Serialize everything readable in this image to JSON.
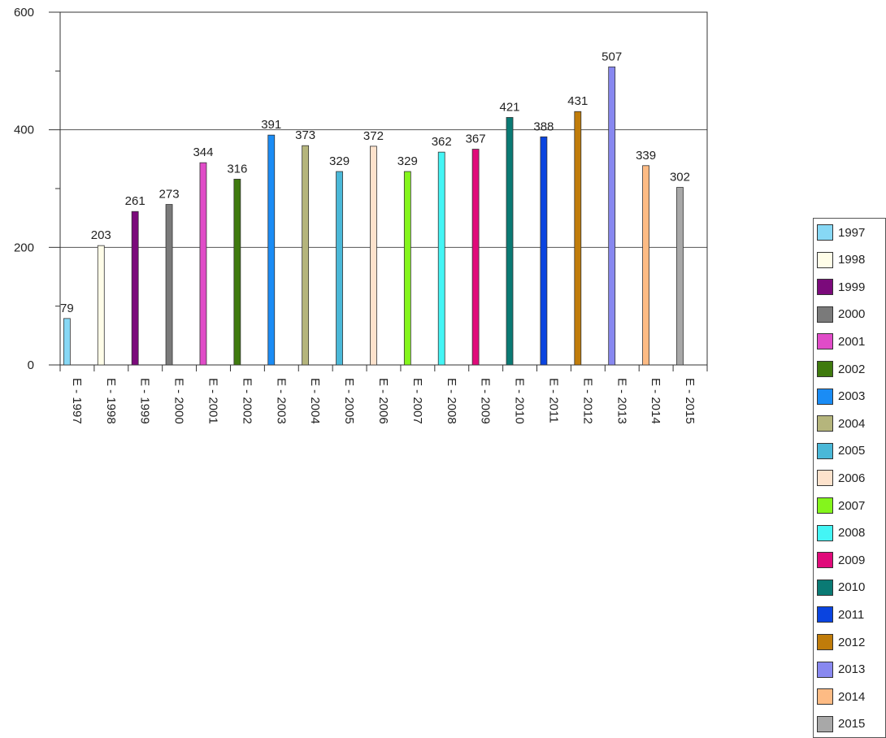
{
  "chart_data": {
    "type": "bar",
    "categories": [
      "E - 1997",
      "E - 1998",
      "E - 1999",
      "E - 2000",
      "E - 2001",
      "E - 2002",
      "E - 2003",
      "E - 2004",
      "E - 2005",
      "E - 2006",
      "E - 2007",
      "E - 2008",
      "E - 2009",
      "E - 2010",
      "E - 2011",
      "E - 2012",
      "E - 2013",
      "E - 2014",
      "E - 2015"
    ],
    "values": [
      79,
      203,
      261,
      273,
      344,
      316,
      391,
      373,
      329,
      372,
      329,
      362,
      367,
      421,
      388,
      431,
      507,
      339,
      302
    ],
    "data_labels": [
      "79",
      "203",
      "261",
      "273",
      "344",
      "316",
      "391",
      "373",
      "329",
      "372",
      "329",
      "362",
      "367",
      "421",
      "388",
      "431",
      "507",
      "339",
      "302"
    ],
    "series_names": [
      "1997",
      "1998",
      "1999",
      "2000",
      "2001",
      "2002",
      "2003",
      "2004",
      "2005",
      "2006",
      "2007",
      "2008",
      "2009",
      "2010",
      "2011",
      "2012",
      "2013",
      "2014",
      "2015"
    ],
    "colors": [
      "#87d8f5",
      "#fffde8",
      "#7b0a7b",
      "#7a7a7a",
      "#e04cc8",
      "#3f7a0e",
      "#1a8cf5",
      "#b5b57c",
      "#4ab8d8",
      "#fde2cc",
      "#84f51c",
      "#44f5f5",
      "#e00a7a",
      "#0a7a74",
      "#0a44e0",
      "#c07c0a",
      "#8888f0",
      "#fdbb84",
      "#a8a8a8"
    ],
    "ylim": [
      0,
      600
    ],
    "y_ticks": [
      "0",
      "200",
      "400",
      "600"
    ],
    "grid": "horizontal major lines at 200 and 400",
    "legend": "right",
    "title": "",
    "xlabel": "",
    "ylabel": ""
  }
}
